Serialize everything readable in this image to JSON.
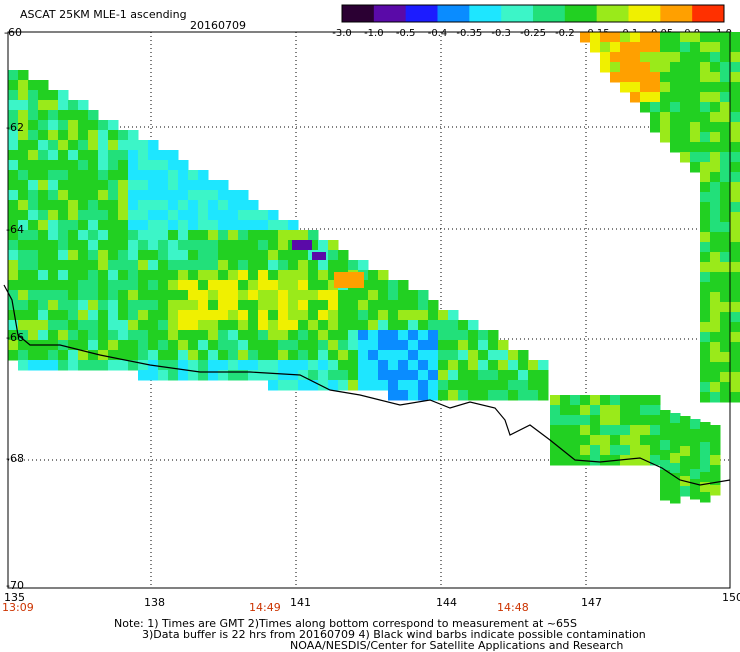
{
  "header": {
    "product": "ASCAT 25KM MLE-1 ascending",
    "date": "20160709"
  },
  "colorbar": {
    "ticks": [
      "-3.0",
      "-1.0",
      "-0.5",
      "-0.4",
      "-0.35",
      "-0.3",
      "-0.25",
      "-0.2",
      "-0.15",
      "-0.1",
      "-0.05",
      "0.0",
      "1.0"
    ],
    "colors": [
      "#2b0033",
      "#5a0aa8",
      "#1c1cff",
      "#0a8cff",
      "#1ee6ff",
      "#3cf5c8",
      "#22e07a",
      "#22d022",
      "#9aea1a",
      "#f0f000",
      "#ffa000",
      "#ff3000"
    ]
  },
  "map": {
    "lat_labels": [
      "-60",
      "-62",
      "-64",
      "-66",
      "-68",
      "-70"
    ],
    "lon_labels": [
      "135",
      "138",
      "141",
      "144",
      "147",
      "150"
    ],
    "time_labels": [
      "13:09",
      "14:49",
      "14:48"
    ],
    "lat_range": [
      -70,
      -60
    ],
    "lon_range": [
      135,
      150
    ]
  },
  "notes": {
    "line1": "Note: 1) Times are GMT 2)Times along bottom correspond to measurement at ~65S",
    "line2": "3)Data buffer is 22 hrs from 20160709 4) Black wind barbs indicate possible contamination",
    "line3": "NOAA/NESDIS/Center for Satellite Applications and Research"
  }
}
